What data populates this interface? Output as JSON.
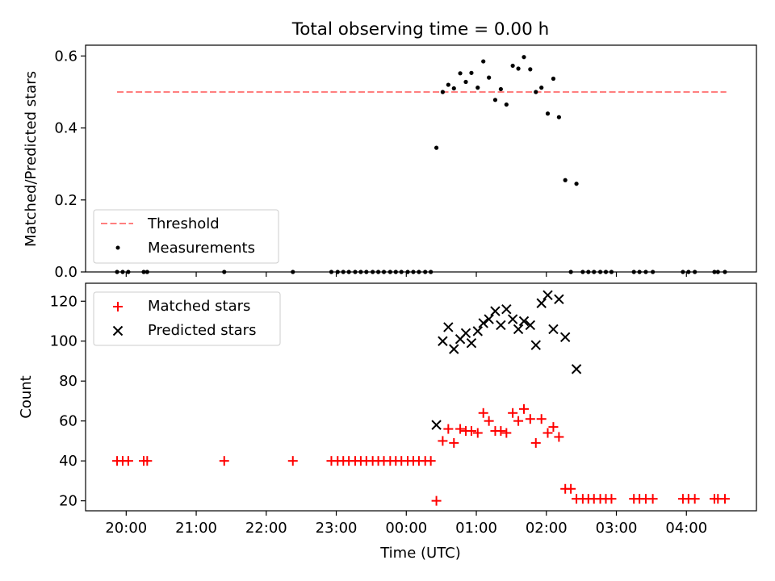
{
  "figure": {
    "title": "Total observing time = 0.00 h"
  },
  "chart_data": [
    {
      "type": "scatter",
      "ylabel": "Matched/Predicted stars",
      "ylim": [
        0,
        0.63
      ],
      "yticks": [
        0.0,
        0.2,
        0.4,
        0.6
      ],
      "ytick_labels": [
        "0.0",
        "0.2",
        "0.4",
        "0.6"
      ],
      "legend_position": "lower-left",
      "threshold": {
        "name": "Threshold",
        "value": 0.5,
        "x_range": [
          19.87,
          28.57
        ],
        "color": "#ff7f7f",
        "style": "dashed"
      },
      "series": [
        {
          "name": "Measurements",
          "color": "#000000",
          "marker": "dot",
          "points": [
            [
              19.87,
              0
            ],
            [
              19.95,
              0
            ],
            [
              20.03,
              0
            ],
            [
              20.25,
              0
            ],
            [
              20.3,
              0
            ],
            [
              21.4,
              0
            ],
            [
              22.38,
              0
            ],
            [
              22.93,
              0
            ],
            [
              23.02,
              0
            ],
            [
              23.1,
              0
            ],
            [
              23.18,
              0
            ],
            [
              23.27,
              0
            ],
            [
              23.35,
              0
            ],
            [
              23.43,
              0
            ],
            [
              23.52,
              0
            ],
            [
              23.6,
              0
            ],
            [
              23.68,
              0
            ],
            [
              23.77,
              0
            ],
            [
              23.85,
              0
            ],
            [
              23.93,
              0
            ],
            [
              24.02,
              0
            ],
            [
              24.1,
              0
            ],
            [
              24.18,
              0
            ],
            [
              24.27,
              0
            ],
            [
              24.35,
              0
            ],
            [
              24.43,
              0.345
            ],
            [
              24.52,
              0.5
            ],
            [
              24.6,
              0.52
            ],
            [
              24.68,
              0.51
            ],
            [
              24.77,
              0.552
            ],
            [
              24.85,
              0.528
            ],
            [
              24.93,
              0.553
            ],
            [
              25.02,
              0.512
            ],
            [
              25.1,
              0.585
            ],
            [
              25.18,
              0.54
            ],
            [
              25.27,
              0.478
            ],
            [
              25.35,
              0.508
            ],
            [
              25.43,
              0.465
            ],
            [
              25.52,
              0.573
            ],
            [
              25.6,
              0.565
            ],
            [
              25.68,
              0.597
            ],
            [
              25.77,
              0.563
            ],
            [
              25.85,
              0.5
            ],
            [
              25.93,
              0.512
            ],
            [
              26.02,
              0.44
            ],
            [
              26.1,
              0.537
            ],
            [
              26.18,
              0.43
            ],
            [
              26.27,
              0.255
            ],
            [
              26.35,
              0
            ],
            [
              26.43,
              0.245
            ],
            [
              26.52,
              0
            ],
            [
              26.6,
              0
            ],
            [
              26.68,
              0
            ],
            [
              26.77,
              0
            ],
            [
              26.85,
              0
            ],
            [
              26.93,
              0
            ],
            [
              27.25,
              0
            ],
            [
              27.33,
              0
            ],
            [
              27.42,
              0
            ],
            [
              27.52,
              0
            ],
            [
              27.95,
              0
            ],
            [
              28.03,
              0
            ],
            [
              28.12,
              0
            ],
            [
              28.4,
              0
            ],
            [
              28.45,
              0
            ],
            [
              28.55,
              0
            ]
          ]
        }
      ]
    },
    {
      "type": "scatter",
      "xlabel": "Time (UTC)",
      "ylabel": "Count",
      "ylim": [
        15,
        129
      ],
      "yticks": [
        20,
        40,
        60,
        80,
        100,
        120
      ],
      "ytick_labels": [
        "20",
        "40",
        "60",
        "80",
        "100",
        "120"
      ],
      "xlim": [
        19.42,
        29.0
      ],
      "xticks": [
        20,
        21,
        22,
        23,
        24,
        25,
        26,
        27,
        28
      ],
      "xtick_labels": [
        "20:00",
        "21:00",
        "22:00",
        "23:00",
        "00:00",
        "01:00",
        "02:00",
        "03:00",
        "04:00"
      ],
      "legend_position": "upper-left",
      "series": [
        {
          "name": "Matched stars",
          "color": "#ff0000",
          "marker": "plus",
          "points": [
            [
              19.87,
              40
            ],
            [
              19.95,
              40
            ],
            [
              20.03,
              40
            ],
            [
              20.25,
              40
            ],
            [
              20.3,
              40
            ],
            [
              21.4,
              40
            ],
            [
              22.38,
              40
            ],
            [
              22.93,
              40
            ],
            [
              23.02,
              40
            ],
            [
              23.1,
              40
            ],
            [
              23.18,
              40
            ],
            [
              23.27,
              40
            ],
            [
              23.35,
              40
            ],
            [
              23.43,
              40
            ],
            [
              23.52,
              40
            ],
            [
              23.6,
              40
            ],
            [
              23.68,
              40
            ],
            [
              23.77,
              40
            ],
            [
              23.85,
              40
            ],
            [
              23.93,
              40
            ],
            [
              24.02,
              40
            ],
            [
              24.1,
              40
            ],
            [
              24.18,
              40
            ],
            [
              24.27,
              40
            ],
            [
              24.35,
              40
            ],
            [
              24.43,
              20
            ],
            [
              24.52,
              50
            ],
            [
              24.6,
              56
            ],
            [
              24.68,
              49
            ],
            [
              24.77,
              56
            ],
            [
              24.85,
              55
            ],
            [
              24.93,
              55
            ],
            [
              25.02,
              54
            ],
            [
              25.1,
              64
            ],
            [
              25.18,
              60
            ],
            [
              25.27,
              55
            ],
            [
              25.35,
              55
            ],
            [
              25.43,
              54
            ],
            [
              25.52,
              64
            ],
            [
              25.6,
              60
            ],
            [
              25.68,
              66
            ],
            [
              25.77,
              61
            ],
            [
              25.85,
              49
            ],
            [
              25.93,
              61
            ],
            [
              26.02,
              54
            ],
            [
              26.1,
              57
            ],
            [
              26.18,
              52
            ],
            [
              26.27,
              26
            ],
            [
              26.35,
              26
            ],
            [
              26.43,
              21
            ],
            [
              26.52,
              21
            ],
            [
              26.6,
              21
            ],
            [
              26.68,
              21
            ],
            [
              26.77,
              21
            ],
            [
              26.85,
              21
            ],
            [
              26.93,
              21
            ],
            [
              27.25,
              21
            ],
            [
              27.33,
              21
            ],
            [
              27.42,
              21
            ],
            [
              27.52,
              21
            ],
            [
              27.95,
              21
            ],
            [
              28.03,
              21
            ],
            [
              28.12,
              21
            ],
            [
              28.4,
              21
            ],
            [
              28.45,
              21
            ],
            [
              28.55,
              21
            ]
          ]
        },
        {
          "name": "Predicted stars",
          "color": "#000000",
          "marker": "x",
          "points": [
            [
              24.43,
              58
            ],
            [
              24.52,
              100
            ],
            [
              24.6,
              107
            ],
            [
              24.68,
              96
            ],
            [
              24.77,
              101
            ],
            [
              24.85,
              104
            ],
            [
              24.93,
              99
            ],
            [
              25.02,
              105
            ],
            [
              25.1,
              109
            ],
            [
              25.18,
              111
            ],
            [
              25.27,
              115
            ],
            [
              25.35,
              108
            ],
            [
              25.43,
              116
            ],
            [
              25.52,
              111
            ],
            [
              25.6,
              106
            ],
            [
              25.68,
              110
            ],
            [
              25.77,
              108
            ],
            [
              25.85,
              98
            ],
            [
              25.93,
              119
            ],
            [
              26.02,
              123
            ],
            [
              26.1,
              106
            ],
            [
              26.18,
              121
            ],
            [
              26.27,
              102
            ],
            [
              26.43,
              86
            ]
          ]
        }
      ]
    }
  ]
}
